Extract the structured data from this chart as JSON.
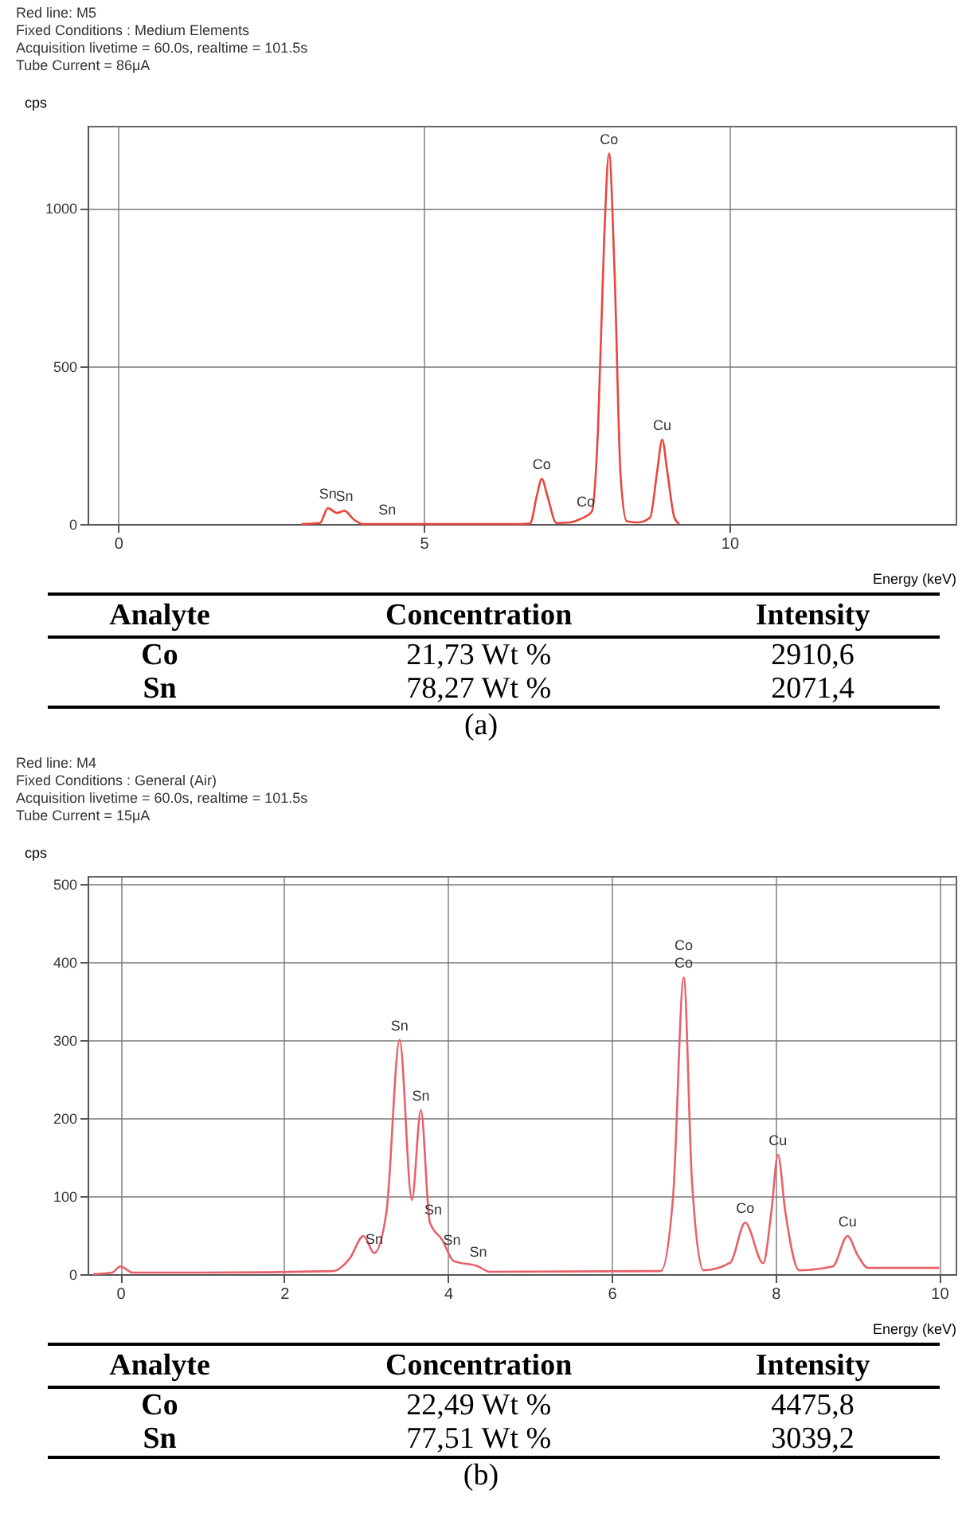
{
  "chart_data": [
    {
      "type": "line",
      "xlabel": "Energy (keV)",
      "ylabel": "cps",
      "xlim": [
        -0.5,
        13.7
      ],
      "xticks": [
        0,
        5,
        10
      ],
      "ylim": [
        0,
        1260
      ],
      "yticks": [
        0,
        500,
        1000
      ],
      "grid": true,
      "x": [
        3.0,
        3.3,
        3.43,
        3.58,
        3.7,
        3.85,
        4.0,
        5.0,
        6.6,
        6.74,
        6.85,
        6.93,
        7.02,
        7.17,
        7.4,
        7.55,
        7.65,
        7.75,
        7.85,
        7.95,
        8.03,
        8.12,
        8.22,
        8.32,
        8.51,
        8.7,
        8.82,
        8.9,
        8.98,
        9.1,
        9.18
      ],
      "series": [
        {
          "color": "#e8453c",
          "values": [
            0,
            3,
            50,
            35,
            42,
            15,
            0,
            0,
            0,
            2,
            90,
            143,
            90,
            3,
            5,
            15,
            24,
            40,
            300,
            900,
            1173,
            800,
            150,
            9,
            5,
            20,
            170,
            267,
            170,
            20,
            0
          ]
        }
      ],
      "annotations": [
        "Red line: M5",
        "Fixed Conditions : Medium Elements",
        "Acquisition livetime = 60.0s, realtime = 101.5s",
        "Tube Current = 86μA",
        {
          "text": "Sn",
          "x": 3.43,
          "y": 50
        },
        {
          "text": "Sn",
          "x": 3.7,
          "y": 42
        },
        {
          "text": "Sn",
          "x": 4.4,
          "y": 0
        },
        {
          "text": "Co",
          "x": 6.93,
          "y": 143
        },
        {
          "text": "Co",
          "x": 7.65,
          "y": 24
        },
        {
          "text": "Co",
          "x": 8.03,
          "y": 1173
        },
        {
          "text": "Cu",
          "x": 8.9,
          "y": 267
        }
      ]
    },
    {
      "type": "other",
      "annotations": [
        "Analyte",
        "Concentration",
        "Intensity",
        "Co",
        "21,73 Wt %",
        "2910,6",
        "Sn",
        "78,27 Wt %",
        "2071,4",
        "(a)"
      ]
    },
    {
      "type": "line",
      "xlabel": "Energy (keV)",
      "ylabel": "cps",
      "xlim": [
        -0.4,
        10.2
      ],
      "xticks": [
        0,
        2,
        4,
        6,
        8,
        10
      ],
      "ylim": [
        0,
        510
      ],
      "yticks": [
        0,
        100,
        200,
        300,
        400,
        500
      ],
      "grid": true,
      "x": [
        -0.33,
        -0.1,
        0,
        0.15,
        1,
        2.6,
        2.8,
        2.97,
        3.1,
        3.25,
        3.41,
        3.56,
        3.67,
        3.78,
        3.93,
        4.07,
        4.37,
        4.51,
        6.6,
        6.75,
        6.88,
        6.98,
        7.12,
        7.45,
        7.63,
        7.85,
        7.95,
        8.03,
        8.12,
        8.29,
        8.7,
        8.88,
        9.0,
        9.13,
        10.0
      ],
      "series": [
        {
          "color": "#e8606a",
          "values": [
            0,
            2,
            10,
            2,
            2,
            4,
            20,
            49,
            27,
            80,
            300,
            95,
            210,
            66,
            44,
            17,
            10,
            3,
            4,
            100,
            380,
            120,
            5,
            15,
            66,
            14,
            80,
            153,
            80,
            5,
            10,
            49,
            25,
            8,
            8
          ]
        }
      ],
      "annotations": [
        "Red line: M4",
        "Fixed Conditions : General (Air)",
        "Acquisition livetime = 60.0s, realtime = 101.5s",
        "Tube Current = 15μA",
        {
          "text": "Sn",
          "x": 3.1,
          "y": 27
        },
        {
          "text": "Sn",
          "x": 3.41,
          "y": 300
        },
        {
          "text": "Sn",
          "x": 3.67,
          "y": 210
        },
        {
          "text": "Sn",
          "x": 3.82,
          "y": 64
        },
        {
          "text": "Sn",
          "x": 4.05,
          "y": 25
        },
        {
          "text": "Sn",
          "x": 4.37,
          "y": 10
        },
        {
          "text": "Co",
          "x": 6.88,
          "y": 380
        },
        {
          "text": "Co",
          "x": 6.88,
          "y": 380
        },
        {
          "text": "Co",
          "x": 7.63,
          "y": 66
        },
        {
          "text": "Cu",
          "x": 8.03,
          "y": 153
        },
        {
          "text": "Cu",
          "x": 8.88,
          "y": 49
        }
      ]
    },
    {
      "type": "other",
      "annotations": [
        "Analyte",
        "Concentration",
        "Intensity",
        "Co",
        "22,49 Wt %",
        "4475,8",
        "Sn",
        "77,51 Wt  %",
        "3039,2",
        "(b)"
      ]
    }
  ]
}
